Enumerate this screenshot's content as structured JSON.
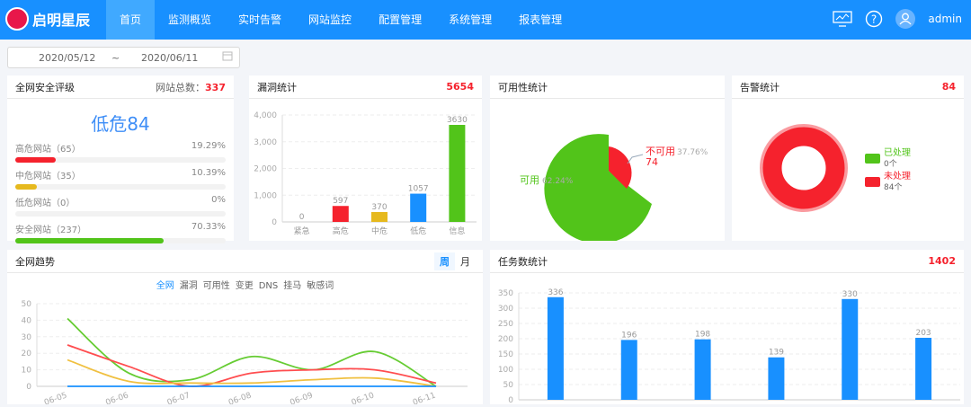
{
  "header": {
    "brand": "启明星辰",
    "nav": [
      "首页",
      "监测概览",
      "实时告警",
      "网站监控",
      "配置管理",
      "系统管理",
      "报表管理"
    ],
    "active": 0,
    "user": "admin",
    "icons": [
      "monitor-icon",
      "help-icon",
      "user-avatar-icon"
    ],
    "color": "#1890ff"
  },
  "date_range": {
    "start": "2020/05/12",
    "sep": "~",
    "end": "2020/06/11"
  },
  "security": {
    "title": "全网安全评级",
    "total_label": "网站总数：",
    "total": "337",
    "level": "低危84",
    "rows": [
      {
        "label": "高危网站（65）",
        "pct": "19.29%",
        "value": 19.29,
        "color": "#f5222d"
      },
      {
        "label": "中危网站（35）",
        "pct": "10.39%",
        "value": 10.39,
        "color": "#e6b91e"
      },
      {
        "label": "低危网站（0）",
        "pct": "0%",
        "value": 0,
        "color": "#1890ff"
      },
      {
        "label": "安全网站（237）",
        "pct": "70.33%",
        "value": 70.33,
        "color": "#52c41a"
      }
    ]
  },
  "vuln": {
    "title": "漏洞统计",
    "total": "5654"
  },
  "availability": {
    "title": "可用性统计",
    "avail_label": "可用",
    "avail_pct": "62.24%",
    "avail_val": "122",
    "unavail_label": "不可用",
    "unavail_pct": "37.76%",
    "unavail_val": "74"
  },
  "alarm": {
    "title": "告警统计",
    "total": "84",
    "legend": [
      {
        "label": "已处理",
        "count": "0个",
        "color": "#52c41a"
      },
      {
        "label": "未处理",
        "count": "84个",
        "color": "#f5222d"
      }
    ]
  },
  "trend": {
    "title": "全网趋势",
    "toggle": [
      "周",
      "月"
    ],
    "legend": [
      "全网",
      "漏洞",
      "可用性",
      "变更",
      "DNS",
      "挂马",
      "敏感词"
    ]
  },
  "task": {
    "title": "任务数统计",
    "total": "1402"
  },
  "chart_data": [
    {
      "type": "bar",
      "categories": [
        "紧急",
        "高危",
        "中危",
        "低危",
        "信息"
      ],
      "values": [
        0,
        597,
        370,
        1057,
        3630
      ],
      "colors": [
        "#f5222d",
        "#f5222d",
        "#e6b91e",
        "#1890ff",
        "#52c41a"
      ],
      "ylim": [
        0,
        4000
      ],
      "yticks": [
        "0",
        "1,000",
        "2,000",
        "3,000",
        "4,000"
      ],
      "grid": true
    },
    {
      "type": "pie",
      "slices": [
        {
          "label": "可用",
          "value": 122,
          "color": "#52c41a"
        },
        {
          "label": "不可用",
          "value": 74,
          "color": "#f5222d"
        }
      ]
    },
    {
      "type": "pie",
      "donut": true,
      "slices": [
        {
          "label": "已处理",
          "value": 0,
          "color": "#52c41a"
        },
        {
          "label": "未处理",
          "value": 84,
          "color": "#f5222d"
        }
      ]
    },
    {
      "type": "line",
      "x": [
        "06-05",
        "06-06",
        "06-07",
        "06-08",
        "06-09",
        "06-10",
        "06-11"
      ],
      "ylim": [
        0,
        50
      ],
      "yticks": [
        "0",
        "10",
        "20",
        "30",
        "40",
        "50"
      ],
      "series": [
        {
          "color": "#66cc33",
          "values": [
            41,
            8,
            4,
            18,
            10,
            21,
            0
          ]
        },
        {
          "color": "#ff4d4f",
          "values": [
            25,
            12,
            0,
            8,
            10,
            10,
            2
          ]
        },
        {
          "color": "#f0c040",
          "values": [
            16,
            3,
            2,
            2,
            4,
            5,
            0
          ]
        },
        {
          "color": "#1890ff",
          "values": [
            0,
            0,
            0,
            0,
            0,
            0,
            0
          ]
        }
      ],
      "grid": true
    },
    {
      "type": "bar",
      "values": [
        336,
        196,
        198,
        139,
        330,
        203
      ],
      "color": "#1890ff",
      "ylim": [
        0,
        350
      ],
      "yticks": [
        "0",
        "50",
        "100",
        "150",
        "200",
        "250",
        "300",
        "350"
      ],
      "grid": true
    }
  ]
}
